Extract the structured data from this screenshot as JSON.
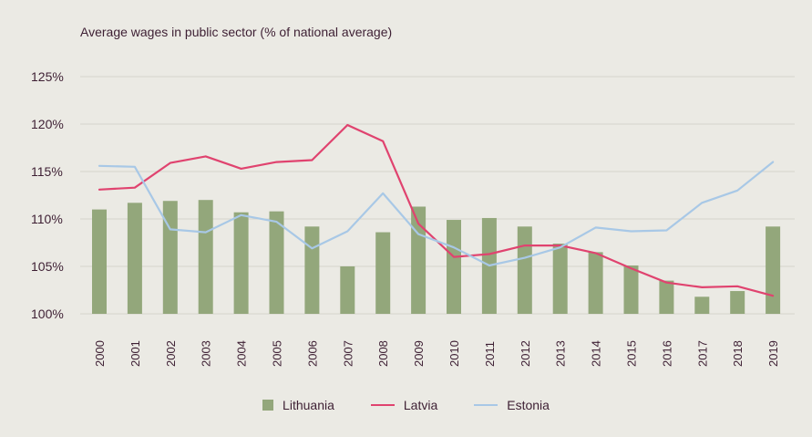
{
  "colors": {
    "background": "#ebeae4",
    "grid": "#d6d4cc",
    "text": "#3d1f33",
    "lithuania": "#93a77b",
    "latvia": "#e0436f",
    "estonia": "#a8c8e6"
  },
  "chart_data": {
    "type": "bar",
    "title": "Average wages in public sector (% of national average)",
    "categories": [
      "2000",
      "2001",
      "2002",
      "2003",
      "2004",
      "2005",
      "2006",
      "2007",
      "2008",
      "2009",
      "2010",
      "2011",
      "2012",
      "2013",
      "2014",
      "2015",
      "2016",
      "2017",
      "2018",
      "2019"
    ],
    "ylim": [
      100,
      125
    ],
    "yticks": [
      100,
      105,
      110,
      115,
      120,
      125
    ],
    "ytick_labels": [
      "100%",
      "105%",
      "110%",
      "115%",
      "120%",
      "125%"
    ],
    "grid": true,
    "legend_position": "bottom",
    "series": [
      {
        "name": "Lithuania",
        "kind": "bar",
        "values": [
          111.0,
          111.7,
          111.9,
          112.0,
          110.7,
          110.8,
          109.2,
          105.0,
          108.6,
          111.3,
          109.9,
          110.1,
          109.2,
          107.4,
          106.5,
          105.1,
          103.5,
          101.8,
          102.4,
          109.2
        ]
      },
      {
        "name": "Latvia",
        "kind": "line",
        "values": [
          113.1,
          113.3,
          115.9,
          116.6,
          115.3,
          116.0,
          116.2,
          119.9,
          118.2,
          109.5,
          106.0,
          106.3,
          107.2,
          107.2,
          106.4,
          104.8,
          103.3,
          102.8,
          102.9,
          101.9
        ]
      },
      {
        "name": "Estonia",
        "kind": "line",
        "values": [
          115.6,
          115.5,
          108.9,
          108.6,
          110.4,
          109.7,
          106.9,
          108.7,
          112.7,
          108.4,
          107.0,
          105.1,
          105.9,
          107.0,
          109.1,
          108.7,
          108.8,
          111.7,
          113.0,
          116.0
        ]
      }
    ]
  },
  "legend": {
    "lithuania_label": "Lithuania",
    "latvia_label": "Latvia",
    "estonia_label": "Estonia"
  }
}
